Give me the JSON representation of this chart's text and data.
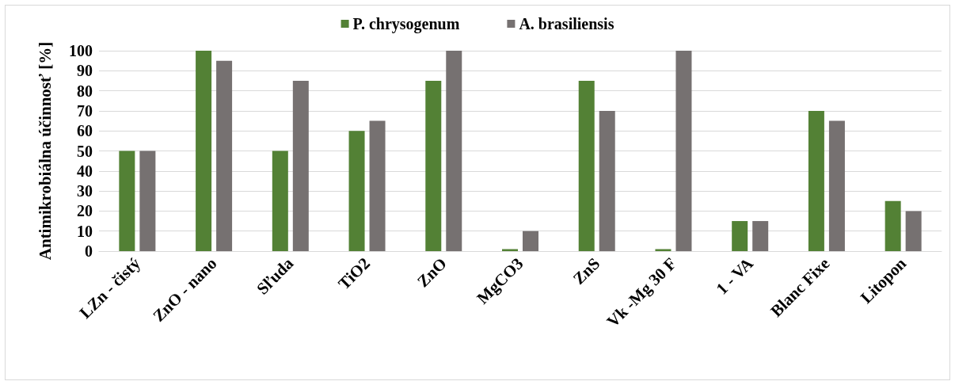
{
  "chart_data": {
    "type": "bar",
    "ylabel": "Antimikrobiálna účinnosť [%]",
    "categories": [
      "LZn - čistý",
      "ZnO - nano",
      "Sľuda",
      "TiO2",
      "ZnO",
      "MgCO3",
      "ZnS",
      "Vk -Mg 30 F",
      "1 - VA",
      "Blanc Fixe",
      "Litopon"
    ],
    "series": [
      {
        "name": "P. chrysogenum",
        "color": "#538135",
        "values": [
          50,
          100,
          50,
          60,
          85,
          1,
          85,
          1,
          15,
          70,
          25
        ]
      },
      {
        "name": "A. brasiliensis",
        "color": "#767171",
        "values": [
          50,
          95,
          85,
          65,
          100,
          10,
          70,
          100,
          15,
          65,
          20
        ]
      }
    ],
    "ylim": [
      0,
      100
    ],
    "yticks": [
      0,
      10,
      20,
      30,
      40,
      50,
      60,
      70,
      80,
      90,
      100
    ],
    "grid": "y",
    "legend": "top"
  }
}
